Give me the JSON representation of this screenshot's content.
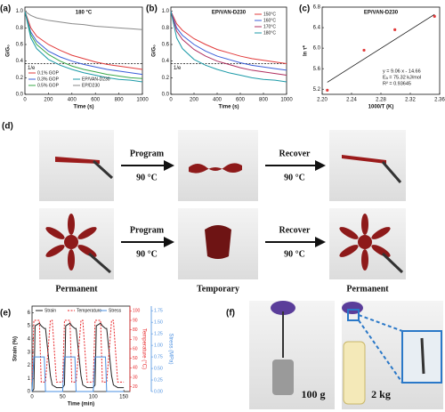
{
  "chart_data": [
    {
      "panel_label": "(a)",
      "type": "line",
      "title": "180 °C",
      "x": [
        0,
        50,
        100,
        200,
        300,
        400,
        500,
        600,
        700,
        800,
        900,
        1000
      ],
      "series": [
        {
          "name": "0.1% GOP",
          "color": "#e23b3b",
          "values": [
            1,
            0.8,
            0.7,
            0.6,
            0.53,
            0.47,
            0.43,
            0.39,
            0.36,
            0.34,
            0.32,
            0.3
          ]
        },
        {
          "name": "0.3% GOP",
          "color": "#3b5fd9",
          "values": [
            1,
            0.75,
            0.64,
            0.52,
            0.45,
            0.4,
            0.36,
            0.33,
            0.3,
            0.28,
            0.26,
            0.24
          ]
        },
        {
          "name": "0.5% GOP",
          "color": "#3aa84a",
          "values": [
            1,
            0.72,
            0.6,
            0.48,
            0.4,
            0.34,
            0.3,
            0.27,
            0.24,
            0.22,
            0.2,
            0.19
          ]
        },
        {
          "name": "EP/VAN-D230",
          "color": "#1c9aa8",
          "values": [
            1,
            0.68,
            0.55,
            0.42,
            0.35,
            0.3,
            0.26,
            0.23,
            0.2,
            0.18,
            0.17,
            0.15
          ]
        },
        {
          "name": "EP/D230",
          "color": "#8a8a8a",
          "values": [
            1,
            0.95,
            0.92,
            0.89,
            0.87,
            0.85,
            0.84,
            0.82,
            0.81,
            0.8,
            0.79,
            0.78
          ]
        }
      ],
      "xlim": [
        0,
        1000
      ],
      "xticks": [
        0,
        200,
        400,
        600,
        800,
        1000
      ],
      "ylim": [
        0,
        1.05
      ],
      "yticks": [
        {
          "value": 0,
          "label": "0.0"
        },
        0.2,
        0.4,
        0.6,
        0.8,
        {
          "value": 1,
          "label": "1.0"
        }
      ],
      "xlabel": "Time (s)",
      "ylabel": "G/G₀",
      "reference_line": {
        "value": 0.37,
        "label": "1/e"
      },
      "legend": "lower left"
    },
    {
      "panel_label": "(b)",
      "type": "line",
      "title": "EP/VAN-D230",
      "x": [
        0,
        50,
        100,
        200,
        300,
        400,
        500,
        600,
        700,
        800,
        900,
        1000
      ],
      "series": [
        {
          "name": "150°C",
          "color": "#e23b3b",
          "values": [
            1,
            0.85,
            0.77,
            0.67,
            0.6,
            0.54,
            0.5,
            0.46,
            0.43,
            0.41,
            0.39,
            0.37
          ]
        },
        {
          "name": "160°C",
          "color": "#3b5fd9",
          "values": [
            1,
            0.8,
            0.71,
            0.6,
            0.52,
            0.46,
            0.42,
            0.38,
            0.35,
            0.33,
            0.31,
            0.29
          ]
        },
        {
          "name": "170°C",
          "color": "#b03060",
          "values": [
            1,
            0.76,
            0.66,
            0.54,
            0.46,
            0.4,
            0.36,
            0.32,
            0.29,
            0.27,
            0.25,
            0.23
          ]
        },
        {
          "name": "180°C",
          "color": "#1c9aa8",
          "values": [
            1,
            0.68,
            0.55,
            0.42,
            0.35,
            0.3,
            0.26,
            0.23,
            0.2,
            0.18,
            0.17,
            0.15
          ]
        }
      ],
      "xlim": [
        0,
        1000
      ],
      "xticks": [
        0,
        200,
        400,
        600,
        800,
        1000
      ],
      "ylim": [
        0,
        1.05
      ],
      "yticks": [
        {
          "value": 0,
          "label": "0.0"
        },
        0.2,
        0.4,
        0.6,
        0.8,
        {
          "value": 1,
          "label": "1.0"
        }
      ],
      "xlabel": "Time (s)",
      "ylabel": "G/G₀",
      "reference_line": {
        "value": 0.37,
        "label": "1/e"
      },
      "legend": "upper right"
    },
    {
      "panel_label": "(c)",
      "type": "scatter",
      "title": "EP/VAN-D230",
      "x": [
        2.207,
        2.257,
        2.299,
        2.353
      ],
      "values": [
        5.18,
        5.96,
        6.36,
        6.62
      ],
      "color": "#e23b3b",
      "fit": {
        "slope": 9.06,
        "intercept": -14.66
      },
      "annotations": [
        "y = 9.06 x - 14.66",
        "Eₐ = 75.32 kJ/mol",
        "R² = 0.93645"
      ],
      "xlim": [
        2.2,
        2.36
      ],
      "xticks": [
        {
          "value": 2.2,
          "label": "2.20"
        },
        2.24,
        2.28,
        2.32,
        2.36
      ],
      "ylim": [
        5.1,
        6.8
      ],
      "yticks": [
        5.2,
        5.6,
        {
          "value": 6,
          "label": "6.0"
        },
        6.4,
        6.8
      ],
      "xlabel": "1000/T (K)",
      "ylabel": "ln τ*"
    },
    {
      "panel_label": "(e)",
      "type": "line",
      "x": [
        0,
        3,
        5,
        12,
        15,
        20,
        22,
        30,
        33,
        40,
        50,
        53,
        55,
        62,
        65,
        70,
        72,
        80,
        83,
        90,
        100,
        103,
        105,
        112,
        115,
        120,
        122,
        130,
        133,
        140,
        150
      ],
      "series": [
        {
          "name": "Strain",
          "color": "#222222",
          "values": [
            0,
            0.2,
            5.0,
            5.2,
            5.0,
            4.8,
            4.8,
            1.2,
            0.5,
            0.3,
            0.3,
            0.5,
            5.0,
            5.2,
            5.0,
            4.8,
            4.8,
            1.2,
            0.5,
            0.3,
            0.3,
            0.5,
            5.0,
            5.2,
            5.0,
            4.8,
            4.8,
            1.2,
            0.5,
            0.3,
            0.3
          ]
        },
        {
          "name": "Temperature",
          "color": "#e8272a",
          "axis": "y2",
          "style": "dashed",
          "values": [
            25,
            90,
            90,
            90,
            25,
            25,
            25,
            90,
            90,
            25,
            25,
            90,
            90,
            90,
            25,
            25,
            25,
            90,
            90,
            25,
            25,
            90,
            90,
            90,
            25,
            25,
            25,
            90,
            90,
            25,
            25
          ]
        },
        {
          "name": "Stress",
          "color": "#4a8fe0",
          "axis": "y3",
          "values": [
            0,
            0.75,
            0.75,
            0.75,
            0.75,
            0.75,
            0,
            0,
            0,
            0,
            0,
            0.75,
            0.75,
            0.75,
            0.75,
            0.75,
            0,
            0,
            0,
            0,
            0,
            0.75,
            0.75,
            0.75,
            0.75,
            0.75,
            0,
            0,
            0,
            0,
            0
          ]
        }
      ],
      "xlim": [
        0,
        160
      ],
      "xticks": [
        0,
        50,
        100,
        150
      ],
      "ylim": [
        0,
        6.5
      ],
      "yticks": [
        0,
        1,
        2,
        3,
        4,
        5,
        6
      ],
      "y2lim": [
        15,
        105
      ],
      "y2ticks": [
        20,
        30,
        40,
        50,
        60,
        70,
        80,
        90,
        100
      ],
      "y3lim": [
        0,
        1.85
      ],
      "y3ticks": [
        {
          "value": 0,
          "label": "0.00"
        },
        0.25,
        {
          "value": 0.5,
          "label": "0.50"
        },
        0.75,
        {
          "value": 1,
          "label": "1.00"
        },
        1.25,
        {
          "value": 1.5,
          "label": "1.50"
        },
        1.75
      ],
      "xlabel": "Time (min)",
      "ylabel": "Strain (%)",
      "y2label": "Temperature (°C)",
      "y3label": "Stress (MPa)",
      "legend": "top"
    }
  ],
  "photo_panels": {
    "d": {
      "label": "(d)",
      "arrows": [
        {
          "top": "Program",
          "bottom": "90 °C"
        },
        {
          "top": "Recover",
          "bottom": "90 °C"
        },
        {
          "top": "Program",
          "bottom": "90 °C"
        },
        {
          "top": "Recover",
          "bottom": "90 °C"
        }
      ],
      "captions": [
        "Permanent",
        "Temporary",
        "Permanent"
      ]
    },
    "f": {
      "label": "(f)",
      "weights": [
        "100 g",
        "2 kg"
      ]
    }
  }
}
